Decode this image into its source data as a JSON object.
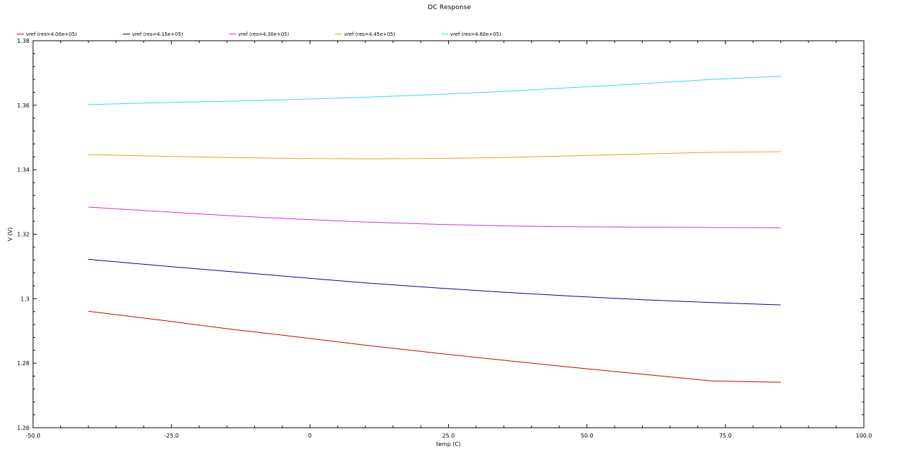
{
  "chart_data": {
    "type": "line",
    "title": "DC Response",
    "xlabel": "temp (C)",
    "ylabel": "V (V)",
    "xlim": [
      -50,
      100
    ],
    "ylim": [
      1.26,
      1.38
    ],
    "xticks": [
      -50,
      -25,
      0,
      25,
      50,
      75,
      100
    ],
    "xtick_labels": [
      "-50.0",
      "-25.0",
      "0",
      "25.0",
      "50.0",
      "75.0",
      "100.0"
    ],
    "yticks": [
      1.26,
      1.28,
      1.3,
      1.32,
      1.34,
      1.36,
      1.38
    ],
    "ytick_labels": [
      "1.26",
      "1.28",
      "1.3",
      "1.32",
      "1.34",
      "1.36",
      "1.38"
    ],
    "grid": false,
    "legend": "top-left",
    "x": [
      -40,
      -27.5,
      -15,
      -2.5,
      10,
      22.5,
      35,
      47.5,
      60,
      72.5,
      85
    ],
    "series": [
      {
        "name": "vref (res=4.00e+05)",
        "color": "#cc0000",
        "values": [
          1.2961,
          1.2935,
          1.2907,
          1.2882,
          1.2856,
          1.2832,
          1.2809,
          1.2787,
          1.2766,
          1.2745,
          1.2741
        ]
      },
      {
        "name": "vref (res=4.15e+05)",
        "color": "#000099",
        "values": [
          1.3122,
          1.3103,
          1.3085,
          1.3067,
          1.3049,
          1.3034,
          1.302,
          1.3008,
          1.2997,
          1.2988,
          1.2981
        ]
      },
      {
        "name": "vref (res=4.30e+05)",
        "color": "#cc33cc",
        "values": [
          1.3284,
          1.3271,
          1.3258,
          1.3247,
          1.3238,
          1.3231,
          1.3226,
          1.3223,
          1.3222,
          1.3221,
          1.322
        ]
      },
      {
        "name": "vref (res=4.45e+05)",
        "color": "#e6a020",
        "values": [
          1.3447,
          1.3442,
          1.3438,
          1.3435,
          1.3434,
          1.3435,
          1.3438,
          1.3443,
          1.3449,
          1.3454,
          1.3456
        ]
      },
      {
        "name": "vref (res=4.60e+05)",
        "color": "#33dddd",
        "values": [
          1.3602,
          1.3608,
          1.3612,
          1.3618,
          1.3625,
          1.3633,
          1.3643,
          1.3655,
          1.3667,
          1.368,
          1.369
        ]
      }
    ]
  }
}
